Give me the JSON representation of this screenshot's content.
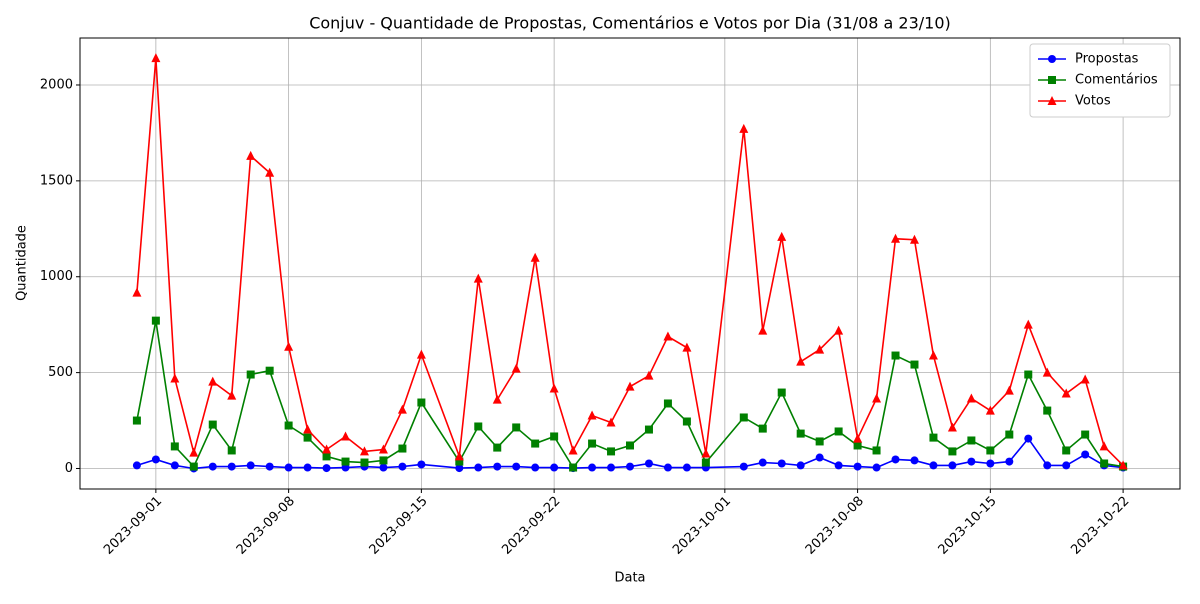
{
  "chart_data": {
    "type": "line",
    "title": "Conjuv - Quantidade de Propostas, Comentários e Votos por Dia (31/08 a 23/10)",
    "x_label": "Data",
    "y_label": "Quantidade",
    "x": [
      "2023-08-31",
      "2023-09-01",
      "2023-09-02",
      "2023-09-03",
      "2023-09-04",
      "2023-09-05",
      "2023-09-06",
      "2023-09-07",
      "2023-09-08",
      "2023-09-09",
      "2023-09-10",
      "2023-09-11",
      "2023-09-12",
      "2023-09-13",
      "2023-09-14",
      "2023-09-15",
      "2023-09-17",
      "2023-09-18",
      "2023-09-19",
      "2023-09-20",
      "2023-09-21",
      "2023-09-22",
      "2023-09-23",
      "2023-09-24",
      "2023-09-25",
      "2023-09-26",
      "2023-09-27",
      "2023-09-28",
      "2023-09-29",
      "2023-09-30",
      "2023-10-02",
      "2023-10-03",
      "2023-10-04",
      "2023-10-05",
      "2023-10-06",
      "2023-10-07",
      "2023-10-08",
      "2023-10-09",
      "2023-10-10",
      "2023-10-11",
      "2023-10-12",
      "2023-10-13",
      "2023-10-14",
      "2023-10-15",
      "2023-10-16",
      "2023-10-17",
      "2023-10-18",
      "2023-10-19",
      "2023-10-20",
      "2023-10-21",
      "2023-10-22"
    ],
    "series": [
      {
        "name": "Propostas",
        "color": "#0000ff",
        "marker": "circle",
        "values": [
          16,
          47,
          16,
          0,
          10,
          10,
          16,
          10,
          5,
          5,
          2,
          5,
          10,
          5,
          10,
          21,
          2,
          5,
          10,
          10,
          5,
          5,
          2,
          5,
          5,
          10,
          26,
          5,
          5,
          5,
          10,
          31,
          26,
          16,
          57,
          16,
          10,
          5,
          47,
          42,
          16,
          16,
          36,
          26,
          36,
          156,
          16,
          16,
          73,
          16,
          5
        ]
      },
      {
        "name": "Comentários",
        "color": "#008000",
        "marker": "square",
        "values": [
          250,
          771,
          115,
          10,
          229,
          94,
          490,
          510,
          224,
          161,
          63,
          36,
          31,
          42,
          104,
          344,
          36,
          219,
          109,
          214,
          130,
          167,
          5,
          130,
          89,
          120,
          203,
          339,
          245,
          31,
          266,
          208,
          396,
          182,
          141,
          193,
          120,
          94,
          589,
          542,
          161,
          89,
          146,
          94,
          177,
          490,
          302,
          94,
          177,
          26,
          10
        ]
      },
      {
        "name": "Votos",
        "color": "#ff0000",
        "marker": "triangle",
        "values": [
          917,
          2140,
          469,
          83,
          453,
          380,
          1630,
          1542,
          635,
          203,
          99,
          167,
          89,
          99,
          307,
          594,
          63,
          990,
          359,
          521,
          1099,
          417,
          94,
          276,
          240,
          427,
          484,
          688,
          630,
          78,
          1771,
          719,
          1208,
          557,
          620,
          719,
          156,
          365,
          1198,
          1193,
          589,
          214,
          365,
          302,
          406,
          750,
          500,
          391,
          464,
          115,
          16
        ]
      }
    ],
    "xlim": [
      "2023-08-28",
      "2023-10-25"
    ],
    "xticks": [
      "2023-09-01",
      "2023-09-08",
      "2023-09-15",
      "2023-09-22",
      "2023-10-01",
      "2023-10-08",
      "2023-10-15",
      "2023-10-22"
    ],
    "ylim": [
      -107,
      2245
    ],
    "yticks": [
      0,
      500,
      1000,
      1500,
      2000
    ],
    "grid": true,
    "legend": "upper right"
  }
}
